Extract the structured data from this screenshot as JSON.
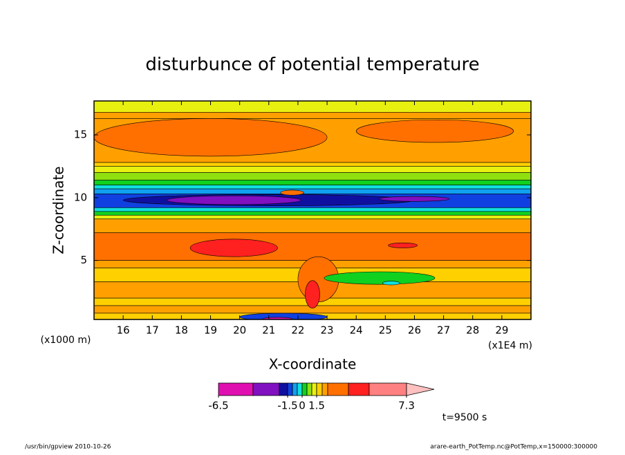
{
  "chart_data": {
    "type": "contour",
    "title": "disturbunce of potential temperature",
    "x_label": "X-coordinate",
    "y_label": "Z-coordinate",
    "x_unit": "(x1E4 m)",
    "y_unit": "(x1000 m)",
    "annotation": "t=9500 s",
    "footer_left": "/usr/bin/gpview  2010-10-26",
    "footer_right": "arare-earth_PotTemp.nc@PotTemp,x=150000:300000",
    "xlim": [
      15,
      30
    ],
    "xticks": [
      16,
      17,
      18,
      19,
      20,
      21,
      22,
      23,
      24,
      25,
      26,
      27,
      28,
      29
    ],
    "ylim": [
      0.3,
      17.7
    ],
    "yticks": [
      5,
      10,
      15
    ],
    "colorbar": {
      "levels": [
        -6.5,
        -4.5,
        -2.5,
        -1.5,
        -1.0,
        -0.5,
        0,
        0.5,
        1.0,
        1.5,
        2.5,
        3.5,
        4.5,
        5.5,
        7.3
      ],
      "ticks": [
        {
          "value": -6.5,
          "label": "-6.5"
        },
        {
          "value": -1.5,
          "label": "-1.5"
        },
        0,
        1.5,
        7.3
      ],
      "colors": [
        "#e010b0",
        "#8010c0",
        "#1010a0",
        "#1040e0",
        "#10a0f0",
        "#10e0e0",
        "#10d020",
        "#90e010",
        "#e8f010",
        "#ffd000",
        "#ffa000",
        "#ff7000",
        "#ff2020",
        "#ff8080"
      ],
      "over_color": "#ffc0c0"
    }
  }
}
